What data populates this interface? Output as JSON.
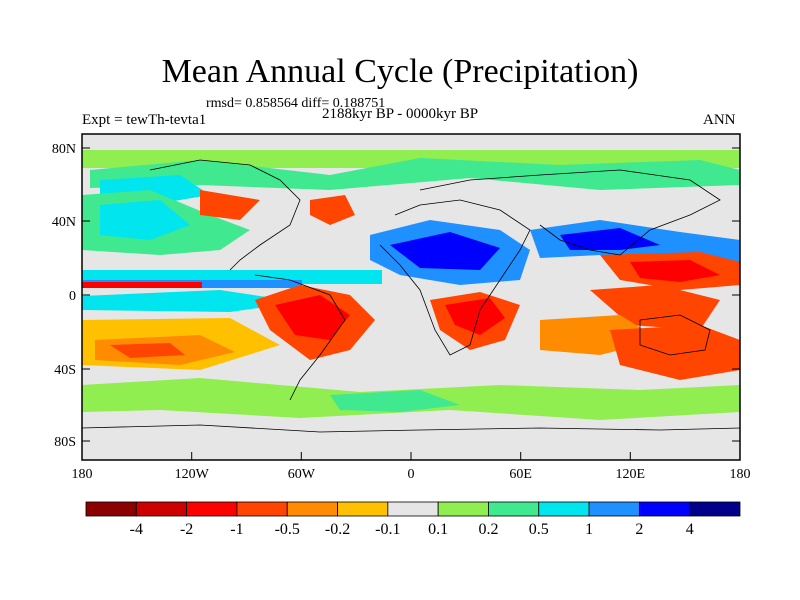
{
  "title": "Mean Annual Cycle (Precipitation)",
  "stats_line": "rmsd= 0.858564 diff= 0.188751",
  "period_line": "2188kyr BP - 0000kyr BP",
  "experiment_label": "Expt = tewTh-tevta1",
  "season_label": "ANN",
  "lat_labels": [
    "80N",
    "40N",
    "0",
    "40S",
    "80S"
  ],
  "lon_labels": [
    "180",
    "120W",
    "60W",
    "0",
    "60E",
    "120E",
    "180"
  ],
  "colorbar": {
    "labels": [
      "-4",
      "-2",
      "-1",
      "-0.5",
      "-0.2",
      "-0.1",
      "0.1",
      "0.2",
      "0.5",
      "1",
      "2",
      "4"
    ],
    "colors": [
      "#8b0000",
      "#cd0000",
      "#ff0000",
      "#ff4500",
      "#ff8c00",
      "#ffc000",
      "#e6e6e6",
      "#90ee50",
      "#40e890",
      "#00e5ee",
      "#1e90ff",
      "#0000ff",
      "#00008b"
    ]
  }
}
